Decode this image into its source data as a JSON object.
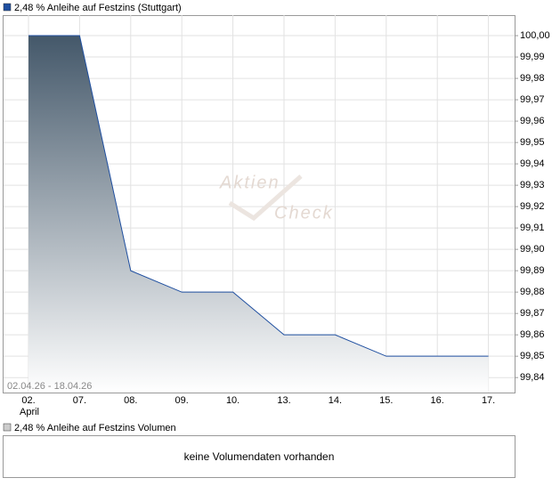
{
  "chart_data": {
    "type": "area",
    "title": "2,48 % Anleihe auf Festzins (Stuttgart)",
    "date_range": "02.04.26 - 18.04.26",
    "month_label": "April",
    "watermark": [
      "Aktien",
      "Check"
    ],
    "categories": [
      "02.",
      "07.",
      "08.",
      "09.",
      "10.",
      "13.",
      "14.",
      "15.",
      "16.",
      "17."
    ],
    "series": [
      {
        "name": "2,48 % Anleihe auf Festzins (Stuttgart)",
        "color": "#1f4fa0",
        "values": [
          100.0,
          100.0,
          99.89,
          99.88,
          99.88,
          99.86,
          99.86,
          99.85,
          99.85,
          99.85
        ]
      }
    ],
    "ylim": [
      99.833,
      100.0096
    ],
    "yticks": [
      {
        "value": 100.0,
        "label": "100,00"
      },
      {
        "value": 99.99,
        "label": "99,99"
      },
      {
        "value": 99.98,
        "label": "99,98"
      },
      {
        "value": 99.97,
        "label": "99,97"
      },
      {
        "value": 99.96,
        "label": "99,96"
      },
      {
        "value": 99.95,
        "label": "99,95"
      },
      {
        "value": 99.94,
        "label": "99,94"
      },
      {
        "value": 99.93,
        "label": "99,93"
      },
      {
        "value": 99.92,
        "label": "99,92"
      },
      {
        "value": 99.91,
        "label": "99,91"
      },
      {
        "value": 99.9,
        "label": "99,90"
      },
      {
        "value": 99.89,
        "label": "99,89"
      },
      {
        "value": 99.88,
        "label": "99,88"
      },
      {
        "value": 99.87,
        "label": "99,87"
      },
      {
        "value": 99.86,
        "label": "99,86"
      },
      {
        "value": 99.85,
        "label": "99,85"
      },
      {
        "value": 99.84,
        "label": "99,84"
      }
    ],
    "grid": true,
    "area_gradient": [
      "#44586a",
      "#ffffff"
    ]
  },
  "volume": {
    "title": "2,48 % Anleihe auf Festzins Volumen",
    "message": "keine Volumendaten vorhanden"
  }
}
